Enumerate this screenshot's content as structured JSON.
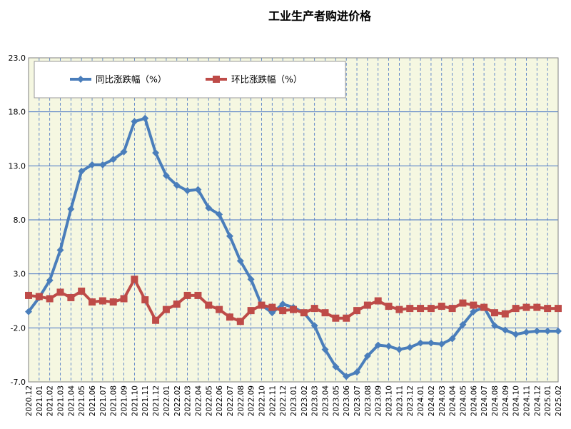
{
  "chart_data": {
    "type": "line",
    "title": "工业生产者购进价格",
    "xlabel": "",
    "ylabel": "",
    "ylim": [
      -7.0,
      23.0
    ],
    "yticks": [
      "23.0",
      "18.0",
      "13.0",
      "8.0",
      "3.0",
      "-2.0",
      "-7.0"
    ],
    "grid": true,
    "legend_position": "top-left",
    "x": [
      "2020.12",
      "2021.01",
      "2021.02",
      "2021.03",
      "2021.04",
      "2021.05",
      "2021.06",
      "2021.07",
      "2021.08",
      "2021.09",
      "2021.10",
      "2021.11",
      "2021.12",
      "2022.01",
      "2022.02",
      "2022.03",
      "2022.04",
      "2022.05",
      "2022.06",
      "2022.07",
      "2022.08",
      "2022.09",
      "2022.10",
      "2022.11",
      "2022.12",
      "2023.01",
      "2023.02",
      "2023.03",
      "2023.04",
      "2023.05",
      "2023.06",
      "2023.07",
      "2023.08",
      "2023.09",
      "2023.10",
      "2023.11",
      "2023.12",
      "2024.01",
      "2024.02",
      "2024.03",
      "2024.04",
      "2024.05",
      "2024.06",
      "2024.07",
      "2024.08",
      "2024.09",
      "2024.10",
      "2024.11",
      "2024.12",
      "2025.01",
      "2025.02"
    ],
    "series": [
      {
        "name": "同比涨跌幅（%）",
        "color": "#4a7ebb",
        "marker": "diamond",
        "values": [
          -0.5,
          0.8,
          2.4,
          5.2,
          9.0,
          12.5,
          13.1,
          13.1,
          13.6,
          14.3,
          17.1,
          17.4,
          14.2,
          12.1,
          11.2,
          10.7,
          10.8,
          9.1,
          8.5,
          6.5,
          4.2,
          2.5,
          0.1,
          -0.6,
          0.2,
          -0.1,
          -0.6,
          -1.8,
          -4.0,
          -5.6,
          -6.5,
          -6.1,
          -4.6,
          -3.6,
          -3.7,
          -4.0,
          -3.8,
          -3.4,
          -3.4,
          -3.5,
          -3.0,
          -1.7,
          -0.5,
          -0.1,
          -1.8,
          -2.2,
          -2.6,
          -2.4,
          -2.3,
          -2.3,
          -2.3
        ]
      },
      {
        "name": "环比涨跌幅（%）",
        "color": "#be4b48",
        "marker": "square",
        "values": [
          1.0,
          0.9,
          0.7,
          1.3,
          0.8,
          1.4,
          0.4,
          0.5,
          0.4,
          0.7,
          2.5,
          0.6,
          -1.3,
          -0.3,
          0.2,
          1.0,
          1.0,
          0.1,
          -0.3,
          -1.0,
          -1.4,
          -0.4,
          0.1,
          -0.1,
          -0.4,
          -0.3,
          -0.6,
          -0.2,
          -0.6,
          -1.1,
          -1.1,
          -0.4,
          0.1,
          0.5,
          0.0,
          -0.3,
          -0.2,
          -0.2,
          -0.2,
          0.0,
          -0.2,
          0.3,
          0.1,
          -0.1,
          -0.6,
          -0.7,
          -0.2,
          -0.1,
          -0.1,
          -0.2,
          -0.2
        ]
      }
    ]
  }
}
